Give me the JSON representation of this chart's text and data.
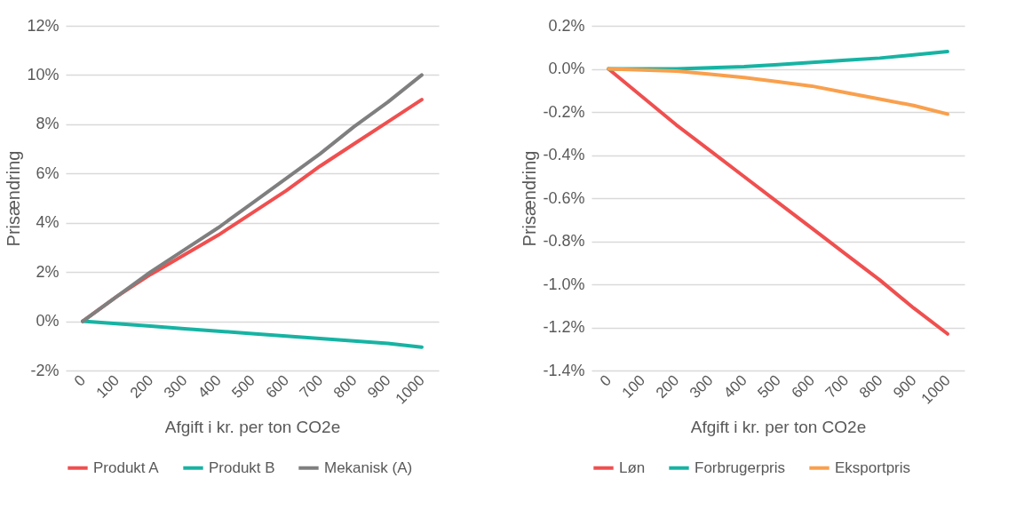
{
  "chart_data": [
    {
      "type": "line",
      "xlabel": "Afgift i kr. per ton CO2e",
      "ylabel": "Prisændring",
      "categories": [
        "0",
        "100",
        "200",
        "300",
        "400",
        "500",
        "600",
        "700",
        "800",
        "900",
        "1000"
      ],
      "series": [
        {
          "name": "Produkt A",
          "color": "#f04f4f",
          "values": [
            0,
            1.0,
            1.9,
            2.7,
            3.5,
            4.4,
            5.3,
            6.3,
            7.2,
            8.1,
            9.0
          ]
        },
        {
          "name": "Produkt B",
          "color": "#17b3a3",
          "values": [
            0,
            -0.1,
            -0.2,
            -0.3,
            -0.4,
            -0.5,
            -0.6,
            -0.7,
            -0.8,
            -0.9,
            -1.05
          ]
        },
        {
          "name": "Mekanisk (A)",
          "color": "#7f7f7f",
          "values": [
            0,
            1.0,
            2.0,
            2.9,
            3.8,
            4.8,
            5.8,
            6.8,
            7.9,
            8.9,
            10.0
          ]
        }
      ],
      "ylim": [
        -2,
        12
      ],
      "yticks": [
        {
          "value": -2,
          "label": "-2%"
        },
        {
          "value": 0,
          "label": "0%"
        },
        {
          "value": 2,
          "label": "2%"
        },
        {
          "value": 4,
          "label": "4%"
        },
        {
          "value": 6,
          "label": "6%"
        },
        {
          "value": 8,
          "label": "8%"
        },
        {
          "value": 10,
          "label": "10%"
        },
        {
          "value": 12,
          "label": "12%"
        }
      ],
      "grid": "y",
      "legend": "bottom",
      "marker": "none",
      "line_style": "solid"
    },
    {
      "type": "line",
      "xlabel": "Afgift i kr. per ton CO2e",
      "ylabel": "Prisændring",
      "categories": [
        "0",
        "100",
        "200",
        "300",
        "400",
        "500",
        "600",
        "700",
        "800",
        "900",
        "1000"
      ],
      "series": [
        {
          "name": "Løn",
          "color": "#f04f4f",
          "values": [
            0,
            -0.13,
            -0.26,
            -0.38,
            -0.5,
            -0.62,
            -0.74,
            -0.86,
            -0.98,
            -1.11,
            -1.23
          ]
        },
        {
          "name": "Forbrugerpris",
          "color": "#17b3a3",
          "values": [
            0,
            0,
            0,
            0.005,
            0.01,
            0.02,
            0.03,
            0.04,
            0.05,
            0.065,
            0.08
          ]
        },
        {
          "name": "Eksportpris",
          "color": "#f9a04d",
          "values": [
            0,
            -0.005,
            -0.01,
            -0.025,
            -0.04,
            -0.06,
            -0.08,
            -0.11,
            -0.14,
            -0.17,
            -0.21
          ]
        }
      ],
      "ylim": [
        -1.4,
        0.2
      ],
      "yticks": [
        {
          "value": -1.4,
          "label": "-1.4%"
        },
        {
          "value": -1.2,
          "label": "-1.2%"
        },
        {
          "value": -1.0,
          "label": "-1.0%"
        },
        {
          "value": -0.8,
          "label": "-0.8%"
        },
        {
          "value": -0.6,
          "label": "-0.6%"
        },
        {
          "value": -0.4,
          "label": "-0.4%"
        },
        {
          "value": -0.2,
          "label": "-0.2%"
        },
        {
          "value": 0.0,
          "label": "0.0%"
        },
        {
          "value": 0.2,
          "label": "0.2%"
        }
      ],
      "grid": "y",
      "legend": "bottom",
      "marker": "none",
      "line_style": "solid"
    }
  ]
}
